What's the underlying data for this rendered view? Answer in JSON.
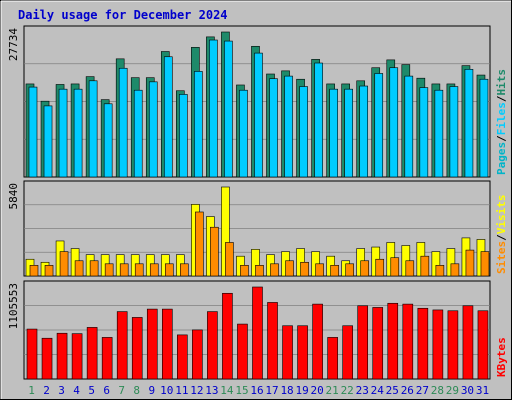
{
  "colors": {
    "frame": "#c0c0c0",
    "panel": "#c0c0c0",
    "title_text": "#0000cc",
    "hits": "#1e8a6a",
    "files": "#00ccff",
    "pages": "#00b4c8",
    "visits": "#ffff00",
    "sites": "#ff8c00",
    "kbytes": "#ff0000",
    "weekend_label": "#2e8b57",
    "weekday_label": "#0000cc"
  },
  "chart_data": {
    "title": "Daily usage for December 2024",
    "type": "bar",
    "categories": [
      "1",
      "2",
      "3",
      "4",
      "5",
      "6",
      "7",
      "8",
      "9",
      "10",
      "11",
      "12",
      "13",
      "14",
      "15",
      "16",
      "17",
      "18",
      "19",
      "20",
      "21",
      "22",
      "23",
      "24",
      "25",
      "26",
      "27",
      "28",
      "29",
      "30",
      "31"
    ],
    "weekend_days": [
      "1",
      "7",
      "8",
      "14",
      "15",
      "21",
      "22",
      "28",
      "29"
    ],
    "panels": [
      {
        "name": "top",
        "max_label": "27734",
        "ymax": 27734,
        "legend": [
          "Pages",
          "Files",
          "Hits"
        ],
        "series": [
          {
            "name": "Hits",
            "values": [
              17800,
              14500,
              17700,
              17800,
              19200,
              14800,
              22600,
              19000,
              19000,
              24000,
              16500,
              24800,
              26800,
              27734,
              17600,
              25000,
              19700,
              20300,
              18700,
              22500,
              17800,
              17800,
              18400,
              20900,
              22400,
              21500,
              18900,
              17800,
              17800,
              21300,
              19500
            ]
          },
          {
            "name": "Files",
            "values": [
              17200,
              13600,
              16800,
              16800,
              18400,
              14000,
              20800,
              16600,
              18200,
              23000,
              15800,
              20200,
              26200,
              26000,
              16600,
              23700,
              18800,
              19300,
              17300,
              21800,
              16800,
              16800,
              17400,
              19800,
              20900,
              19300,
              17100,
              16600,
              17300,
              20600,
              18700
            ]
          },
          {
            "name": "Pages",
            "values": [
              0,
              0,
              0,
              0,
              0,
              0,
              0,
              0,
              0,
              0,
              0,
              0,
              0,
              0,
              0,
              0,
              0,
              0,
              0,
              0,
              0,
              0,
              0,
              0,
              0,
              0,
              0,
              0,
              0,
              0,
              0
            ]
          }
        ]
      },
      {
        "name": "middle",
        "max_label": "5840",
        "ymax": 5840,
        "legend": [
          "Sites",
          "Visits"
        ],
        "series": [
          {
            "name": "Visits",
            "values": [
              1100,
              900,
              2300,
              1800,
              1400,
              1400,
              1400,
              1400,
              1400,
              1400,
              1400,
              4700,
              3900,
              5840,
              1300,
              1750,
              1400,
              1600,
              1800,
              1600,
              1300,
              1000,
              1800,
              1900,
              2200,
              2000,
              2200,
              1600,
              1800,
              2500,
              2400
            ]
          },
          {
            "name": "Sites",
            "values": [
              700,
              700,
              1600,
              1000,
              1000,
              800,
              800,
              800,
              800,
              800,
              800,
              4200,
              3200,
              2200,
              700,
              700,
              800,
              1000,
              900,
              800,
              700,
              800,
              1000,
              1100,
              1200,
              1000,
              1300,
              700,
              800,
              1700,
              1600
            ]
          }
        ]
      },
      {
        "name": "bottom",
        "max_label": "1105553",
        "ymax": 1105553,
        "legend": [
          "KBytes"
        ],
        "series": [
          {
            "name": "KBytes",
            "values": [
              600000,
              490000,
              550000,
              545000,
              620000,
              500000,
              810000,
              740000,
              840000,
              840000,
              530000,
              590000,
              810000,
              1030000,
              660000,
              1105553,
              920000,
              640000,
              640000,
              900000,
              500000,
              640000,
              880000,
              860000,
              910000,
              900000,
              850000,
              830000,
              820000,
              880000,
              820000
            ]
          }
        ]
      }
    ]
  }
}
